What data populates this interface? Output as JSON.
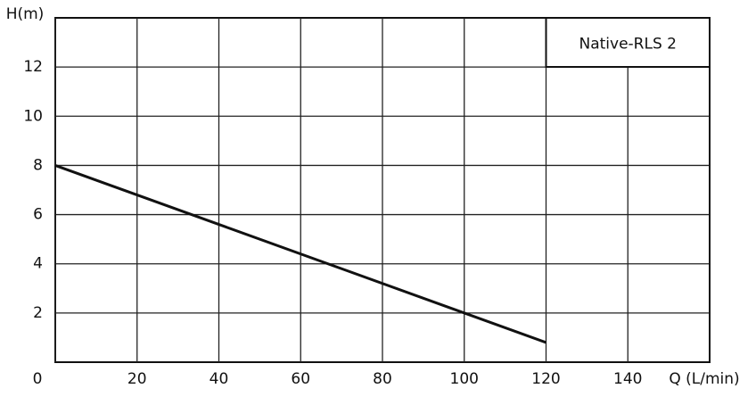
{
  "chart_data": {
    "type": "line",
    "x_label": "Q (L/min)",
    "y_label": "H(m)",
    "x": [
      0,
      120
    ],
    "series": [
      {
        "name": "Native-RLS 2",
        "color": "#111111",
        "values": [
          8,
          0.8
        ]
      }
    ],
    "xlim": [
      0,
      160
    ],
    "xticks": [
      0,
      20,
      40,
      60,
      80,
      100,
      120,
      140
    ],
    "ylim": [
      0,
      14
    ],
    "yticks": [
      2,
      4,
      6,
      8,
      10,
      12
    ],
    "grid": true,
    "legend": "top-right"
  }
}
